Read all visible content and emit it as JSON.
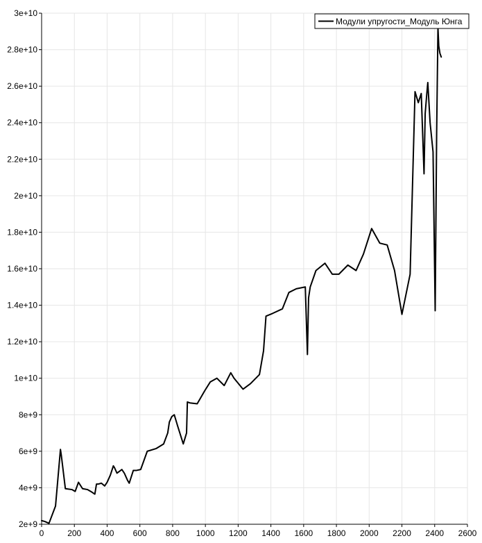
{
  "chart_data": {
    "type": "line",
    "title": "",
    "xlabel": "",
    "ylabel": "",
    "xlim": [
      0,
      2600
    ],
    "ylim": [
      2000000000,
      30000000000
    ],
    "grid": true,
    "legend_position": "top-right",
    "x_ticks": [
      {
        "value": 0,
        "label": "0"
      },
      {
        "value": 200,
        "label": "200"
      },
      {
        "value": 400,
        "label": "400"
      },
      {
        "value": 600,
        "label": "600"
      },
      {
        "value": 800,
        "label": "800"
      },
      {
        "value": 1000,
        "label": "1000"
      },
      {
        "value": 1200,
        "label": "1200"
      },
      {
        "value": 1400,
        "label": "1400"
      },
      {
        "value": 1600,
        "label": "1600"
      },
      {
        "value": 1800,
        "label": "1800"
      },
      {
        "value": 2000,
        "label": "2000"
      },
      {
        "value": 2200,
        "label": "2200"
      },
      {
        "value": 2400,
        "label": "2400"
      },
      {
        "value": 2600,
        "label": "2600"
      }
    ],
    "y_ticks": [
      {
        "value": 2000000000,
        "label": "2e+9"
      },
      {
        "value": 4000000000,
        "label": "4e+9"
      },
      {
        "value": 6000000000,
        "label": "6e+9"
      },
      {
        "value": 8000000000,
        "label": "8e+9"
      },
      {
        "value": 10000000000,
        "label": "1e+10"
      },
      {
        "value": 12000000000,
        "label": "1.2e+10"
      },
      {
        "value": 14000000000,
        "label": "1.4e+10"
      },
      {
        "value": 16000000000,
        "label": "1.6e+10"
      },
      {
        "value": 18000000000,
        "label": "1.8e+10"
      },
      {
        "value": 20000000000,
        "label": "2e+10"
      },
      {
        "value": 22000000000,
        "label": "2.2e+10"
      },
      {
        "value": 24000000000,
        "label": "2.4e+10"
      },
      {
        "value": 26000000000,
        "label": "2.6e+10"
      },
      {
        "value": 28000000000,
        "label": "2.8e+10"
      },
      {
        "value": 30000000000,
        "label": "3e+10"
      }
    ],
    "series": [
      {
        "name": "Модули упругости_Модуль Юнга",
        "color": "#000000",
        "x": [
          0,
          20,
          45,
          85,
          115,
          120,
          145,
          185,
          205,
          225,
          250,
          280,
          300,
          325,
          335,
          345,
          365,
          385,
          400,
          420,
          438,
          445,
          460,
          490,
          505,
          525,
          535,
          560,
          580,
          605,
          645,
          700,
          745,
          770,
          780,
          795,
          810,
          830,
          865,
          885,
          890,
          905,
          950,
          995,
          1030,
          1070,
          1115,
          1155,
          1175,
          1230,
          1275,
          1330,
          1355,
          1370,
          1410,
          1470,
          1510,
          1555,
          1610,
          1623,
          1630,
          1640,
          1675,
          1730,
          1775,
          1815,
          1870,
          1920,
          1965,
          2015,
          2065,
          2110,
          2155,
          2200,
          2250,
          2280,
          2300,
          2318,
          2335,
          2342,
          2352,
          2358,
          2372,
          2390,
          2403,
          2412,
          2420,
          2425,
          2432,
          2440
        ],
        "y": [
          2200000000,
          2150000000,
          2050000000,
          3000000000,
          6100000000,
          5800000000,
          3950000000,
          3900000000,
          3800000000,
          4300000000,
          3950000000,
          3900000000,
          3800000000,
          3650000000,
          4200000000,
          4200000000,
          4250000000,
          4100000000,
          4300000000,
          4700000000,
          5200000000,
          5100000000,
          4800000000,
          5000000000,
          4800000000,
          4400000000,
          4250000000,
          4950000000,
          4950000000,
          5000000000,
          6000000000,
          6150000000,
          6400000000,
          7000000000,
          7600000000,
          7900000000,
          8000000000,
          7400000000,
          6400000000,
          7000000000,
          8700000000,
          8650000000,
          8600000000,
          9300000000,
          9800000000,
          10000000000,
          9600000000,
          10300000000,
          10000000000,
          9400000000,
          9700000000,
          10200000000,
          11500000000,
          13400000000,
          13550000000,
          13800000000,
          14700000000,
          14900000000,
          15000000000,
          11300000000,
          14400000000,
          15000000000,
          15900000000,
          16300000000,
          15700000000,
          15700000000,
          16200000000,
          15900000000,
          16800000000,
          18200000000,
          17400000000,
          17300000000,
          15900000000,
          13500000000,
          15700000000,
          25700000000,
          25100000000,
          25600000000,
          21200000000,
          24500000000,
          25600000000,
          26200000000,
          24000000000,
          22400000000,
          13700000000,
          23400000000,
          29200000000,
          28200000000,
          27800000000,
          27600000000
        ]
      }
    ]
  }
}
